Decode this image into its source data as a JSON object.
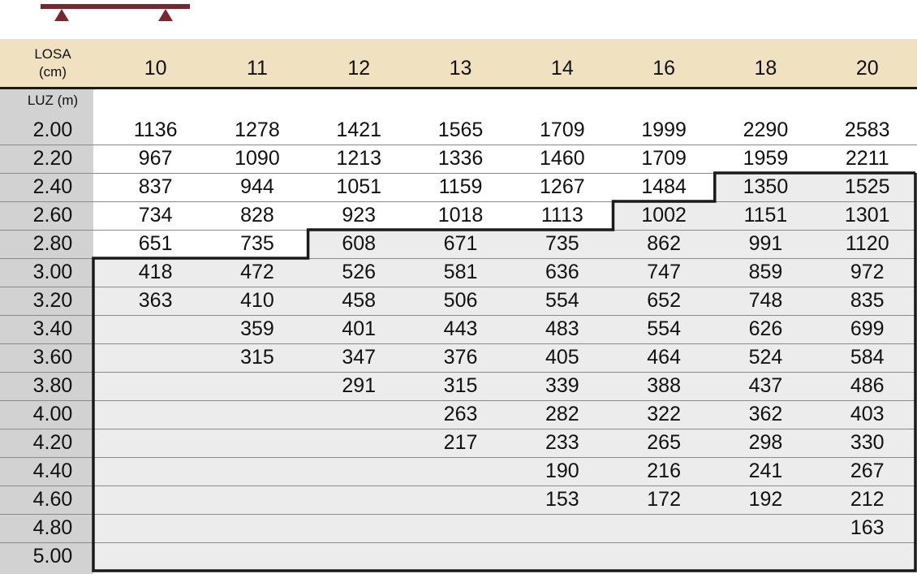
{
  "beam_icon": {
    "name": "simply-supported-beam-icon",
    "color": "#7a2530"
  },
  "header": {
    "corner_label_line1": "LOSA",
    "corner_label_line2": "(cm)",
    "row_label": "LUZ (m)",
    "columns": [
      "10",
      "11",
      "12",
      "13",
      "14",
      "16",
      "18",
      "20"
    ]
  },
  "colors": {
    "header_bg": "#f0e1c0",
    "span_col_bg": "#d2d2d2",
    "shaded_bg": "#ececec",
    "border": "#1a1a1a"
  },
  "rows": [
    {
      "span": "2.00",
      "values": [
        "1136",
        "1278",
        "1421",
        "1565",
        "1709",
        "1999",
        "2290",
        "2583"
      ],
      "shaded_from": 8
    },
    {
      "span": "2.20",
      "values": [
        "967",
        "1090",
        "1213",
        "1336",
        "1460",
        "1709",
        "1959",
        "2211"
      ],
      "shaded_from": 8
    },
    {
      "span": "2.40",
      "values": [
        "837",
        "944",
        "1051",
        "1159",
        "1267",
        "1484",
        "1350",
        "1525"
      ],
      "shaded_from": 6
    },
    {
      "span": "2.60",
      "values": [
        "734",
        "828",
        "923",
        "1018",
        "1113",
        "1002",
        "1151",
        "1301"
      ],
      "shaded_from": 5
    },
    {
      "span": "2.80",
      "values": [
        "651",
        "735",
        "608",
        "671",
        "735",
        "862",
        "991",
        "1120"
      ],
      "shaded_from": 2
    },
    {
      "span": "3.00",
      "values": [
        "418",
        "472",
        "526",
        "581",
        "636",
        "747",
        "859",
        "972"
      ],
      "shaded_from": 0
    },
    {
      "span": "3.20",
      "values": [
        "363",
        "410",
        "458",
        "506",
        "554",
        "652",
        "748",
        "835"
      ],
      "shaded_from": 0
    },
    {
      "span": "3.40",
      "values": [
        "",
        "359",
        "401",
        "443",
        "483",
        "554",
        "626",
        "699"
      ],
      "shaded_from": 0
    },
    {
      "span": "3.60",
      "values": [
        "",
        "315",
        "347",
        "376",
        "405",
        "464",
        "524",
        "584"
      ],
      "shaded_from": 0
    },
    {
      "span": "3.80",
      "values": [
        "",
        "",
        "291",
        "315",
        "339",
        "388",
        "437",
        "486"
      ],
      "shaded_from": 0
    },
    {
      "span": "4.00",
      "values": [
        "",
        "",
        "",
        "263",
        "282",
        "322",
        "362",
        "403"
      ],
      "shaded_from": 0
    },
    {
      "span": "4.20",
      "values": [
        "",
        "",
        "",
        "217",
        "233",
        "265",
        "298",
        "330"
      ],
      "shaded_from": 0
    },
    {
      "span": "4.40",
      "values": [
        "",
        "",
        "",
        "",
        "190",
        "216",
        "241",
        "267"
      ],
      "shaded_from": 0
    },
    {
      "span": "4.60",
      "values": [
        "",
        "",
        "",
        "",
        "153",
        "172",
        "192",
        "212"
      ],
      "shaded_from": 0
    },
    {
      "span": "4.80",
      "values": [
        "",
        "",
        "",
        "",
        "",
        "",
        "",
        "163"
      ],
      "shaded_from": 0
    },
    {
      "span": "5.00",
      "values": [
        "",
        "",
        "",
        "",
        "",
        "",
        "",
        ""
      ],
      "shaded_from": 0
    }
  ]
}
